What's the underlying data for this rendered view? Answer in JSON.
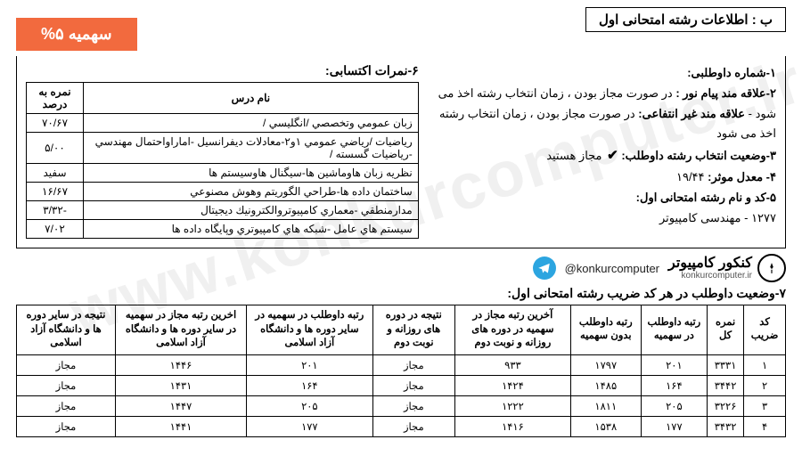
{
  "header": {
    "title": "ب : اطلاعات رشته امتحانی اول",
    "quota_badge": "سهمیه ۵%"
  },
  "info": {
    "line1_label": "۱-شماره داوطلبی:",
    "line2_label": "۲-علاقه مند پیام نور :",
    "line2_text": " در صورت مجاز بودن ، زمان انتخاب رشته اخذ می شود - ",
    "line2b_label": "علاقه مند غیر انتفاعی:",
    "line2b_text": " در صورت مجاز بودن ، زمان انتخاب رشته اخذ می شود",
    "line3_label": "۳-وضعیت انتخاب رشته داوطلب:",
    "line3_check": "✔",
    "line3_text": " مجاز هستید",
    "line4_label": "۴- معدل موثر:",
    "line4_val": " ۱۹/۴۴",
    "line5_label": "۵-کد و نام رشته امتحانی اول:",
    "line5_val": "۱۲۷۷ - مهندسی کامپیوتر"
  },
  "scores": {
    "title": "۶-نمرات اکتسابی:",
    "columns": [
      "نام درس",
      "نمره به درصد"
    ],
    "rows": [
      [
        "زبان عمومي وتخصصي /انگليسي /",
        "۷۰/۶۷"
      ],
      [
        "رياضيات /رياضي عمومي ۱و۲-معادلات ديفرانسيل -اماراواحتمال مهندسي -رياضيات گسسته /",
        "۵/۰۰"
      ],
      [
        "نظريه زبان هاوماشين ها-سيگنال هاوسيستم ها",
        "سفید"
      ],
      [
        "ساختمان داده ها-طراحي الگوريتم وهوش مصنوعي",
        "۱۶/۶۷"
      ],
      [
        "مدارمنطقي -معماري كامپيوتروالكترونيك ديجيتال",
        "-۳/۳۲"
      ],
      [
        "سيستم هاي عامل -شبكه هاي كامپيوتري وپايگاه داده ها",
        "۷/۰۲"
      ]
    ]
  },
  "logo": {
    "handle": "@konkurcomputer",
    "brand_main": "کنکور کامپیوتر",
    "brand_sub": "konkurcomputer.ir"
  },
  "ranks": {
    "title": "۷-وضعیت داوطلب در هر کد ضریب رشته امتحانی اول:",
    "columns": [
      "کد ضریب",
      "نمره کل",
      "رتبه داوطلب در سهمیه",
      "رتبه داوطلب بدون سهمیه",
      "آخرین رتبه مجاز در سهمیه در دوره های روزانه و نوبت دوم",
      "نتیجه در دوره های روزانه و نوبت دوم",
      "رتبه داوطلب در سهمیه در سایر دوره ها و دانشگاه آزاد اسلامی",
      "اخرین رتبه مجاز در سهمیه در سایر دوره ها و دانشگاه آزاد اسلامی",
      "نتیجه در سایر دوره ها و دانشگاه آزاد اسلامی"
    ],
    "rows": [
      [
        "۱",
        "۳۳۳۱",
        "۲۰۱",
        "۱۷۹۷",
        "۹۳۳",
        "مجاز",
        "۲۰۱",
        "۱۴۴۶",
        "مجاز"
      ],
      [
        "۲",
        "۳۴۴۲",
        "۱۶۴",
        "۱۴۸۵",
        "۱۴۲۴",
        "مجاز",
        "۱۶۴",
        "۱۴۳۱",
        "مجاز"
      ],
      [
        "۳",
        "۳۲۲۶",
        "۲۰۵",
        "۱۸۱۱",
        "۱۲۲۲",
        "مجاز",
        "۲۰۵",
        "۱۴۴۷",
        "مجاز"
      ],
      [
        "۴",
        "۳۴۳۲",
        "۱۷۷",
        "۱۵۳۸",
        "۱۴۱۶",
        "مجاز",
        "۱۷۷",
        "۱۴۴۱",
        "مجاز"
      ]
    ]
  },
  "watermark": "www.konkurcomputer.ir",
  "style": {
    "badge_bg": "#f26a3e",
    "badge_color": "#ffffff",
    "border_color": "#000000",
    "telegram_color": "#2ca5e0"
  }
}
